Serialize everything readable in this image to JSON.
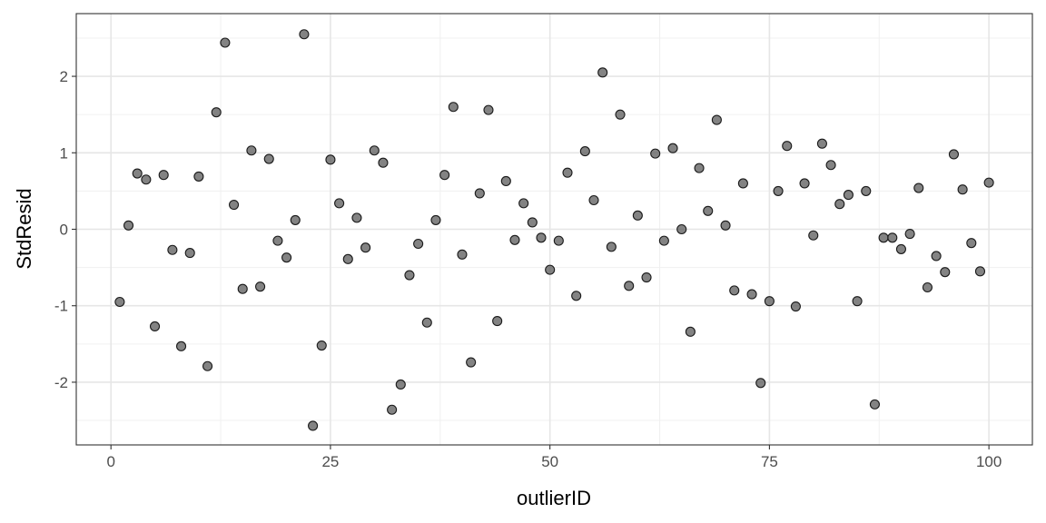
{
  "chart_data": {
    "type": "scatter",
    "title": "",
    "xlabel": "outlierID",
    "ylabel": "StdResid",
    "xlim": [
      -3.95,
      104.95
    ],
    "ylim": [
      -2.82,
      2.82
    ],
    "x_ticks": [
      0,
      25,
      50,
      75,
      100
    ],
    "y_ticks": [
      -2,
      -1,
      0,
      1,
      2
    ],
    "grid": true,
    "point_color": "#595959",
    "x": [
      1,
      2,
      3,
      4,
      5,
      6,
      7,
      8,
      9,
      10,
      11,
      12,
      13,
      14,
      15,
      16,
      17,
      18,
      19,
      20,
      21,
      22,
      23,
      24,
      25,
      26,
      27,
      28,
      29,
      30,
      31,
      32,
      33,
      34,
      35,
      36,
      37,
      38,
      39,
      40,
      41,
      42,
      43,
      44,
      45,
      46,
      47,
      48,
      49,
      50,
      51,
      52,
      53,
      54,
      55,
      56,
      57,
      58,
      59,
      60,
      61,
      62,
      63,
      64,
      65,
      66,
      67,
      68,
      69,
      70,
      71,
      72,
      73,
      74,
      75,
      76,
      77,
      78,
      79,
      80,
      81,
      82,
      83,
      84,
      85,
      86,
      87,
      88,
      89,
      90,
      91,
      92,
      93,
      94,
      95,
      96,
      97,
      98,
      99,
      100
    ],
    "y": [
      -0.95,
      0.05,
      0.73,
      0.65,
      -1.27,
      0.71,
      -0.27,
      -1.53,
      -0.31,
      0.69,
      -1.79,
      1.53,
      2.44,
      0.32,
      -0.78,
      1.03,
      -0.75,
      0.92,
      -0.15,
      -0.37,
      0.12,
      2.55,
      -2.57,
      -1.52,
      0.91,
      0.34,
      -0.39,
      0.15,
      -0.24,
      1.03,
      0.87,
      -2.36,
      -2.03,
      -0.6,
      -0.19,
      -1.22,
      0.12,
      0.71,
      1.6,
      -0.33,
      -1.74,
      0.47,
      1.56,
      -1.2,
      0.63,
      -0.14,
      0.34,
      0.09,
      -0.11,
      -0.53,
      -0.15,
      0.74,
      -0.87,
      1.02,
      0.38,
      2.05,
      -0.23,
      1.5,
      -0.74,
      0.18,
      -0.63,
      0.99,
      -0.15,
      1.06,
      0.0,
      -1.34,
      0.8,
      0.24,
      1.43,
      0.05,
      -0.8,
      0.6,
      -0.85,
      -2.01,
      -0.94,
      0.5,
      1.09,
      -1.01,
      0.6,
      -0.08,
      1.12,
      0.84,
      0.33,
      0.45,
      -0.94,
      0.5,
      -2.29,
      -0.11,
      -0.11,
      -0.26,
      -0.06,
      0.54,
      -0.76,
      -0.35,
      -0.56,
      0.98,
      0.52,
      -0.18,
      -0.55,
      0.61
    ]
  }
}
